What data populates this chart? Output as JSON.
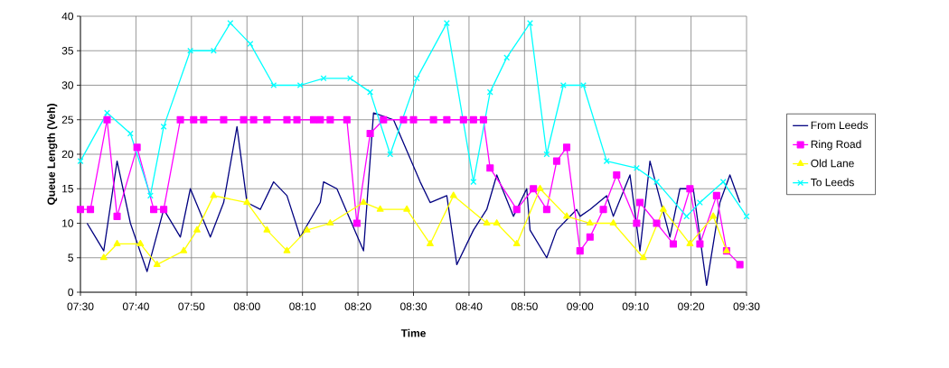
{
  "chart_data": {
    "type": "line",
    "xlabel": "Time",
    "ylabel": "Queue Length (Veh)",
    "xlim": [
      7.5,
      9.5
    ],
    "ylim": [
      0,
      40
    ],
    "xticks": [
      {
        "value": 7.5,
        "label": "07:30"
      },
      {
        "value": 7.6667,
        "label": "07:40"
      },
      {
        "value": 7.8333,
        "label": "07:50"
      },
      {
        "value": 8.0,
        "label": "08:00"
      },
      {
        "value": 8.1667,
        "label": "08:10"
      },
      {
        "value": 8.3333,
        "label": "08:20"
      },
      {
        "value": 8.5,
        "label": "08:30"
      },
      {
        "value": 8.6667,
        "label": "08:40"
      },
      {
        "value": 8.8333,
        "label": "08:50"
      },
      {
        "value": 9.0,
        "label": "09:00"
      },
      {
        "value": 9.1667,
        "label": "09:10"
      },
      {
        "value": 9.3333,
        "label": "09:20"
      },
      {
        "value": 9.5,
        "label": "09:30"
      }
    ],
    "yticks": [
      0,
      5,
      10,
      15,
      20,
      25,
      30,
      35,
      40
    ],
    "grid": true,
    "legend": "right",
    "series": [
      {
        "name": "From Leeds",
        "color": "#000080",
        "marker": "none",
        "x": [
          7.52,
          7.57,
          7.61,
          7.65,
          7.7,
          7.75,
          7.8,
          7.83,
          7.89,
          7.93,
          7.97,
          8.0,
          8.04,
          8.08,
          8.12,
          8.16,
          8.22,
          8.23,
          8.27,
          8.35,
          8.38,
          8.44,
          8.52,
          8.55,
          8.6,
          8.63,
          8.68,
          8.72,
          8.75,
          8.8,
          8.84,
          8.85,
          8.9,
          8.93,
          8.99,
          9.0,
          9.03,
          9.08,
          9.1,
          9.15,
          9.18,
          9.21,
          9.27,
          9.3,
          9.34,
          9.38,
          9.42,
          9.45,
          9.48
        ],
        "values": [
          10,
          6,
          19,
          10,
          3,
          12,
          8,
          15,
          8,
          13,
          24,
          13,
          12,
          16,
          14,
          8,
          13,
          16,
          15,
          6,
          26,
          25,
          16,
          13,
          14,
          4,
          9,
          12,
          17,
          11,
          15,
          9,
          5,
          9,
          12,
          11,
          12,
          14,
          11,
          17,
          6,
          19,
          8,
          15,
          15,
          1,
          13,
          17,
          13
        ]
      },
      {
        "name": "Ring Road",
        "color": "#ff00ff",
        "marker": "square",
        "x": [
          7.5,
          7.53,
          7.58,
          7.61,
          7.67,
          7.72,
          7.75,
          7.8,
          7.84,
          7.87,
          7.93,
          7.99,
          8.02,
          8.06,
          8.12,
          8.15,
          8.2,
          8.22,
          8.25,
          8.3,
          8.33,
          8.37,
          8.41,
          8.47,
          8.5,
          8.56,
          8.6,
          8.65,
          8.68,
          8.71,
          8.73,
          8.81,
          8.86,
          8.9,
          8.93,
          8.96,
          9.0,
          9.03,
          9.07,
          9.11,
          9.17,
          9.18,
          9.23,
          9.28,
          9.33,
          9.36,
          9.41,
          9.44,
          9.48
        ],
        "values": [
          12,
          12,
          25,
          11,
          21,
          12,
          12,
          25,
          25,
          25,
          25,
          25,
          25,
          25,
          25,
          25,
          25,
          25,
          25,
          25,
          10,
          23,
          25,
          25,
          25,
          25,
          25,
          25,
          25,
          25,
          18,
          12,
          15,
          12,
          19,
          21,
          6,
          8,
          12,
          17,
          10,
          13,
          10,
          7,
          15,
          7,
          14,
          6,
          4
        ]
      },
      {
        "name": "Old Lane",
        "color": "#ffff00",
        "marker": "triangle",
        "x": [
          7.57,
          7.61,
          7.68,
          7.73,
          7.81,
          7.85,
          7.9,
          8.0,
          8.06,
          8.12,
          8.18,
          8.25,
          8.35,
          8.4,
          8.48,
          8.55,
          8.62,
          8.72,
          8.75,
          8.81,
          8.88,
          8.96,
          9.03,
          9.1,
          9.19,
          9.25,
          9.33,
          9.4,
          9.44
        ],
        "values": [
          5,
          7,
          7,
          4,
          6,
          9,
          14,
          13,
          9,
          6,
          9,
          10,
          13,
          12,
          12,
          7,
          14,
          10,
          10,
          7,
          15,
          11,
          10,
          10,
          5,
          12,
          7,
          11,
          6
        ]
      },
      {
        "name": "To Leeds",
        "color": "#00ffff",
        "marker": "cross",
        "x": [
          7.5,
          7.58,
          7.65,
          7.71,
          7.75,
          7.83,
          7.9,
          7.95,
          8.01,
          8.08,
          8.16,
          8.23,
          8.31,
          8.37,
          8.43,
          8.51,
          8.6,
          8.68,
          8.73,
          8.78,
          8.85,
          8.9,
          8.95,
          9.01,
          9.08,
          9.17,
          9.23,
          9.32,
          9.36,
          9.43,
          9.5
        ],
        "values": [
          19,
          26,
          23,
          14,
          24,
          35,
          35,
          39,
          36,
          30,
          30,
          31,
          31,
          29,
          20,
          31,
          39,
          16,
          29,
          34,
          39,
          20,
          30,
          30,
          19,
          18,
          16,
          11,
          13,
          16,
          11
        ]
      }
    ]
  }
}
